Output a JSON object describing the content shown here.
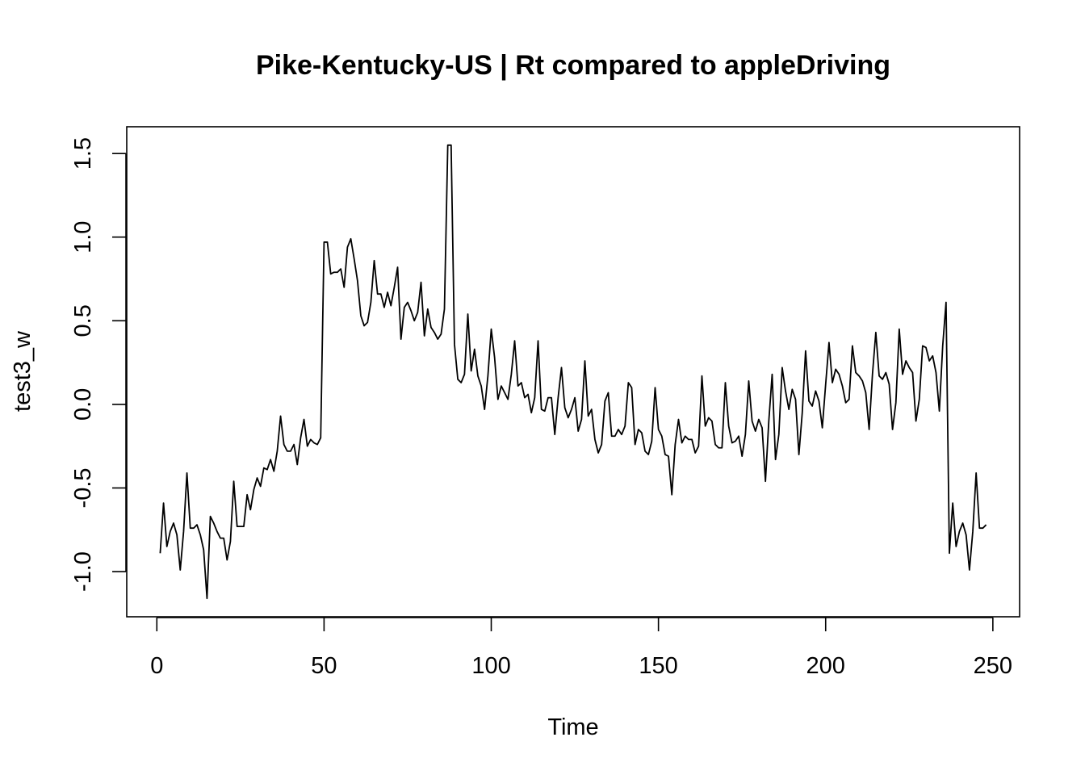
{
  "chart_data": {
    "type": "line",
    "title": "Pike-Kentucky-US | Rt compared to appleDriving",
    "xlabel": "Time",
    "ylabel": "test3_w",
    "xlim": [
      -9,
      258
    ],
    "ylim": [
      -1.27,
      1.66
    ],
    "xticks": [
      0,
      50,
      100,
      150,
      200,
      250
    ],
    "yticks": [
      -1.0,
      -0.5,
      0.0,
      0.5,
      1.0,
      1.5
    ],
    "xtick_labels": [
      "0",
      "50",
      "100",
      "150",
      "200",
      "250"
    ],
    "ytick_labels": [
      "-1.0",
      "-0.5",
      "0.0",
      "0.5",
      "1.0",
      "1.5"
    ],
    "grid": false,
    "line_color": "#000000",
    "series": [
      {
        "x": [
          1,
          2,
          3,
          4,
          5,
          6,
          7,
          8,
          9,
          10,
          11,
          12,
          13,
          14,
          15,
          16,
          17,
          18,
          19,
          20,
          21,
          22,
          23,
          24,
          25,
          26,
          27,
          28,
          29,
          30,
          31,
          32,
          33,
          34,
          35,
          36,
          37,
          38,
          39,
          40,
          41,
          42,
          43,
          44,
          45,
          46,
          47,
          48,
          49,
          50,
          51,
          52,
          53,
          54,
          55,
          56,
          57,
          58,
          59,
          60,
          61,
          62,
          63,
          64,
          65,
          66,
          67,
          68,
          69,
          70,
          71,
          72,
          73,
          74,
          75,
          76,
          77,
          78,
          79,
          80,
          81,
          82,
          83,
          84,
          85,
          86,
          87,
          88,
          89,
          90,
          91,
          92,
          93,
          94,
          95,
          96,
          97,
          98,
          99,
          100,
          101,
          102,
          103,
          104,
          105,
          106,
          107,
          108,
          109,
          110,
          111,
          112,
          113,
          114,
          115,
          116,
          117,
          118,
          119,
          120,
          121,
          122,
          123,
          124,
          125,
          126,
          127,
          128,
          129,
          130,
          131,
          132,
          133,
          134,
          135,
          136,
          137,
          138,
          139,
          140,
          141,
          142,
          143,
          144,
          145,
          146,
          147,
          148,
          149,
          150,
          151,
          152,
          153,
          154,
          155,
          156,
          157,
          158,
          159,
          160,
          161,
          162,
          163,
          164,
          165,
          166,
          167,
          168,
          169,
          170,
          171,
          172,
          173,
          174,
          175,
          176,
          177,
          178,
          179,
          180,
          181,
          182,
          183,
          184,
          185,
          186,
          187,
          188,
          189,
          190,
          191,
          192,
          193,
          194,
          195,
          196,
          197,
          198,
          199,
          200,
          201,
          202,
          203,
          204,
          205,
          206,
          207,
          208,
          209,
          210,
          211,
          212,
          213,
          214,
          215,
          216,
          217,
          218,
          219,
          220,
          221,
          222,
          223,
          224,
          225,
          226,
          227,
          228,
          229,
          230,
          231,
          232,
          233,
          234,
          235,
          236,
          237,
          238,
          239,
          240,
          241,
          242,
          243,
          244,
          245,
          246,
          247,
          248
        ],
        "values": [
          -0.89,
          -0.59,
          -0.85,
          -0.76,
          -0.71,
          -0.78,
          -0.99,
          -0.76,
          -0.41,
          -0.74,
          -0.74,
          -0.72,
          -0.78,
          -0.87,
          -1.16,
          -0.67,
          -0.71,
          -0.76,
          -0.8,
          -0.8,
          -0.93,
          -0.82,
          -0.46,
          -0.73,
          -0.73,
          -0.73,
          -0.54,
          -0.63,
          -0.51,
          -0.44,
          -0.49,
          -0.38,
          -0.39,
          -0.33,
          -0.4,
          -0.28,
          -0.07,
          -0.24,
          -0.28,
          -0.28,
          -0.24,
          -0.36,
          -0.2,
          -0.09,
          -0.25,
          -0.21,
          -0.23,
          -0.24,
          -0.2,
          0.97,
          0.97,
          0.78,
          0.79,
          0.79,
          0.81,
          0.7,
          0.94,
          0.99,
          0.87,
          0.74,
          0.53,
          0.47,
          0.49,
          0.61,
          0.86,
          0.66,
          0.66,
          0.58,
          0.67,
          0.59,
          0.7,
          0.82,
          0.39,
          0.58,
          0.61,
          0.56,
          0.5,
          0.55,
          0.73,
          0.41,
          0.57,
          0.46,
          0.43,
          0.39,
          0.42,
          0.57,
          1.55,
          1.55,
          0.36,
          0.15,
          0.13,
          0.18,
          0.54,
          0.2,
          0.33,
          0.17,
          0.11,
          -0.03,
          0.17,
          0.45,
          0.28,
          0.03,
          0.11,
          0.07,
          0.03,
          0.18,
          0.38,
          0.11,
          0.13,
          0.04,
          0.06,
          -0.05,
          0.04,
          0.38,
          -0.03,
          -0.04,
          0.04,
          0.04,
          -0.18,
          0.04,
          0.22,
          -0.02,
          -0.08,
          -0.03,
          0.04,
          -0.16,
          -0.09,
          0.26,
          -0.07,
          -0.03,
          -0.21,
          -0.29,
          -0.24,
          0.02,
          0.07,
          -0.19,
          -0.19,
          -0.15,
          -0.18,
          -0.13,
          0.13,
          0.1,
          -0.24,
          -0.15,
          -0.17,
          -0.28,
          -0.3,
          -0.22,
          0.1,
          -0.15,
          -0.19,
          -0.3,
          -0.31,
          -0.54,
          -0.24,
          -0.09,
          -0.23,
          -0.19,
          -0.21,
          -0.21,
          -0.29,
          -0.25,
          0.17,
          -0.13,
          -0.08,
          -0.1,
          -0.24,
          -0.26,
          -0.26,
          0.13,
          -0.13,
          -0.23,
          -0.22,
          -0.19,
          -0.31,
          -0.18,
          0.14,
          -0.1,
          -0.16,
          -0.09,
          -0.14,
          -0.46,
          -0.1,
          0.18,
          -0.33,
          -0.18,
          0.22,
          0.08,
          -0.03,
          0.09,
          0.03,
          -0.3,
          -0.05,
          0.32,
          0.02,
          -0.01,
          0.08,
          0.02,
          -0.14,
          0.12,
          0.37,
          0.13,
          0.21,
          0.18,
          0.11,
          0.01,
          0.03,
          0.35,
          0.19,
          0.17,
          0.14,
          0.07,
          -0.15,
          0.18,
          0.43,
          0.17,
          0.15,
          0.19,
          0.12,
          -0.15,
          0.01,
          0.45,
          0.18,
          0.26,
          0.22,
          0.19,
          -0.1,
          0.03,
          0.35,
          0.34,
          0.26,
          0.29,
          0.19,
          -0.04,
          0.35,
          0.61,
          -0.89,
          -0.59,
          -0.85,
          -0.76,
          -0.71,
          -0.78,
          -0.99,
          -0.76,
          -0.41,
          -0.74,
          -0.74,
          -0.72
        ]
      }
    ]
  }
}
